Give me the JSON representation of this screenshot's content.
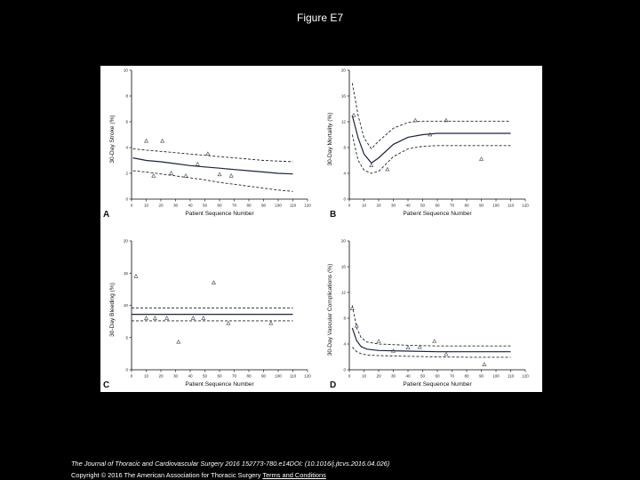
{
  "page": {
    "title": "Figure E7",
    "citation": "The Journal of Thoracic and Cardiovascular Surgery 2016 152773-780.e14DOI: (10.1016/j.jtcvs.2016.04.026)",
    "copyright": "Copyright © 2016 The American Association for Thoracic Surgery",
    "terms_link": "Terms and Conditions"
  },
  "chart_data": [
    {
      "type": "line",
      "panel_letter": "A",
      "xlabel": "Patient Sequence Number",
      "ylabel": "30-Day Stroke (%)",
      "xlim": [
        0,
        120
      ],
      "ylim": [
        0,
        10
      ],
      "xticks": [
        "0",
        "10",
        "20",
        "30",
        "40",
        "50",
        "60",
        "70",
        "80",
        "90",
        "100",
        "110",
        "120"
      ],
      "yticks": [
        "0",
        "2",
        "4",
        "6",
        "8",
        "10"
      ],
      "curve": [
        [
          1,
          3.2
        ],
        [
          10,
          3.0
        ],
        [
          20,
          2.9
        ],
        [
          30,
          2.75
        ],
        [
          40,
          2.6
        ],
        [
          50,
          2.5
        ],
        [
          60,
          2.4
        ],
        [
          70,
          2.3
        ],
        [
          80,
          2.2
        ],
        [
          90,
          2.1
        ],
        [
          100,
          2.0
        ],
        [
          110,
          1.95
        ]
      ],
      "upper": [
        [
          1,
          3.9
        ],
        [
          10,
          3.8
        ],
        [
          20,
          3.7
        ],
        [
          30,
          3.6
        ],
        [
          40,
          3.5
        ],
        [
          50,
          3.4
        ],
        [
          60,
          3.3
        ],
        [
          70,
          3.2
        ],
        [
          80,
          3.1
        ],
        [
          90,
          3.0
        ],
        [
          100,
          2.95
        ],
        [
          110,
          2.9
        ]
      ],
      "lower": [
        [
          1,
          2.2
        ],
        [
          10,
          2.1
        ],
        [
          20,
          1.95
        ],
        [
          30,
          1.8
        ],
        [
          40,
          1.65
        ],
        [
          50,
          1.5
        ],
        [
          60,
          1.3
        ],
        [
          70,
          1.15
        ],
        [
          80,
          1.0
        ],
        [
          90,
          0.85
        ],
        [
          100,
          0.7
        ],
        [
          110,
          0.6
        ]
      ],
      "points": [
        [
          10,
          4.5
        ],
        [
          15,
          1.8
        ],
        [
          21,
          4.5
        ],
        [
          27,
          2.0
        ],
        [
          37,
          1.8
        ],
        [
          45,
          2.7
        ],
        [
          52,
          3.5
        ],
        [
          60,
          1.9
        ],
        [
          68,
          1.8
        ]
      ]
    },
    {
      "type": "line",
      "panel_letter": "B",
      "xlabel": "Patient Sequence Number",
      "ylabel": "30-Day Mortality (%)",
      "xlim": [
        0,
        120
      ],
      "ylim": [
        0,
        20
      ],
      "xticks": [
        "0",
        "10",
        "20",
        "30",
        "40",
        "50",
        "60",
        "70",
        "80",
        "90",
        "100",
        "110",
        "120"
      ],
      "yticks": [
        "0",
        "4",
        "8",
        "12",
        "16",
        "20"
      ],
      "curve": [
        [
          2,
          13
        ],
        [
          6,
          9.5
        ],
        [
          10,
          7
        ],
        [
          15,
          5.6
        ],
        [
          20,
          6.4
        ],
        [
          30,
          8.5
        ],
        [
          40,
          9.6
        ],
        [
          50,
          10.0
        ],
        [
          60,
          10.2
        ],
        [
          80,
          10.2
        ],
        [
          100,
          10.2
        ],
        [
          110,
          10.2
        ]
      ],
      "upper": [
        [
          2,
          18
        ],
        [
          6,
          13
        ],
        [
          10,
          9.5
        ],
        [
          15,
          7.8
        ],
        [
          20,
          9
        ],
        [
          30,
          11
        ],
        [
          40,
          11.9
        ],
        [
          50,
          12.1
        ],
        [
          60,
          12.1
        ],
        [
          80,
          12.1
        ],
        [
          100,
          12.1
        ],
        [
          110,
          12.1
        ]
      ],
      "lower": [
        [
          2,
          10
        ],
        [
          6,
          6
        ],
        [
          10,
          4.5
        ],
        [
          15,
          4
        ],
        [
          20,
          4.3
        ],
        [
          30,
          6.6
        ],
        [
          40,
          7.8
        ],
        [
          50,
          8.2
        ],
        [
          60,
          8.3
        ],
        [
          80,
          8.3
        ],
        [
          100,
          8.3
        ],
        [
          110,
          8.3
        ]
      ],
      "points": [
        [
          3,
          13
        ],
        [
          15,
          5.2
        ],
        [
          26,
          4.6
        ],
        [
          45,
          12.2
        ],
        [
          55,
          10
        ],
        [
          66,
          12.2
        ],
        [
          90,
          6.2
        ]
      ]
    },
    {
      "type": "line",
      "panel_letter": "C",
      "xlabel": "Patient Sequence Number",
      "ylabel": "30-Day Bleeding (%)",
      "xlim": [
        0,
        120
      ],
      "ylim": [
        0,
        20
      ],
      "xticks": [
        "0",
        "10",
        "20",
        "30",
        "40",
        "50",
        "60",
        "70",
        "80",
        "90",
        "100",
        "110",
        "120"
      ],
      "yticks": [
        "0",
        "5",
        "10",
        "15",
        "20"
      ],
      "curve": [
        [
          0,
          8.6
        ],
        [
          110,
          8.6
        ]
      ],
      "upper": [
        [
          0,
          9.6
        ],
        [
          110,
          9.6
        ]
      ],
      "lower": [
        [
          0,
          7.6
        ],
        [
          110,
          7.6
        ]
      ],
      "points": [
        [
          3,
          14.5
        ],
        [
          10,
          8
        ],
        [
          16,
          8
        ],
        [
          24,
          8
        ],
        [
          32,
          4.3
        ],
        [
          42,
          8
        ],
        [
          49,
          8
        ],
        [
          56,
          13.5
        ],
        [
          66,
          7.2
        ],
        [
          95,
          7.2
        ]
      ]
    },
    {
      "type": "line",
      "panel_letter": "D",
      "xlabel": "Patient Sequence Number",
      "ylabel": "30-Day Vascular Complications (%)",
      "xlim": [
        0,
        120
      ],
      "ylim": [
        0,
        20
      ],
      "xticks": [
        "0",
        "10",
        "20",
        "30",
        "40",
        "50",
        "60",
        "70",
        "80",
        "90",
        "100",
        "110",
        "120"
      ],
      "yticks": [
        "0",
        "4",
        "8",
        "12",
        "16",
        "20"
      ],
      "curve": [
        [
          2,
          6.5
        ],
        [
          5,
          4.5
        ],
        [
          8,
          3.6
        ],
        [
          12,
          3.2
        ],
        [
          20,
          3.0
        ],
        [
          40,
          2.9
        ],
        [
          60,
          2.8
        ],
        [
          80,
          2.8
        ],
        [
          110,
          2.8
        ]
      ],
      "upper": [
        [
          2,
          10
        ],
        [
          5,
          6.5
        ],
        [
          8,
          5
        ],
        [
          12,
          4.3
        ],
        [
          20,
          4.0
        ],
        [
          40,
          3.8
        ],
        [
          60,
          3.7
        ],
        [
          80,
          3.7
        ],
        [
          110,
          3.7
        ]
      ],
      "lower": [
        [
          2,
          3.5
        ],
        [
          5,
          2.8
        ],
        [
          8,
          2.5
        ],
        [
          12,
          2.3
        ],
        [
          20,
          2.2
        ],
        [
          40,
          2.1
        ],
        [
          60,
          2.0
        ],
        [
          80,
          1.95
        ],
        [
          110,
          1.95
        ]
      ],
      "points": [
        [
          2,
          9.5
        ],
        [
          5,
          6.8
        ],
        [
          20,
          4.4
        ],
        [
          30,
          2.9
        ],
        [
          40,
          3.4
        ],
        [
          48,
          3.5
        ],
        [
          58,
          4.4
        ],
        [
          66,
          2.4
        ],
        [
          92,
          0.8
        ]
      ]
    }
  ]
}
